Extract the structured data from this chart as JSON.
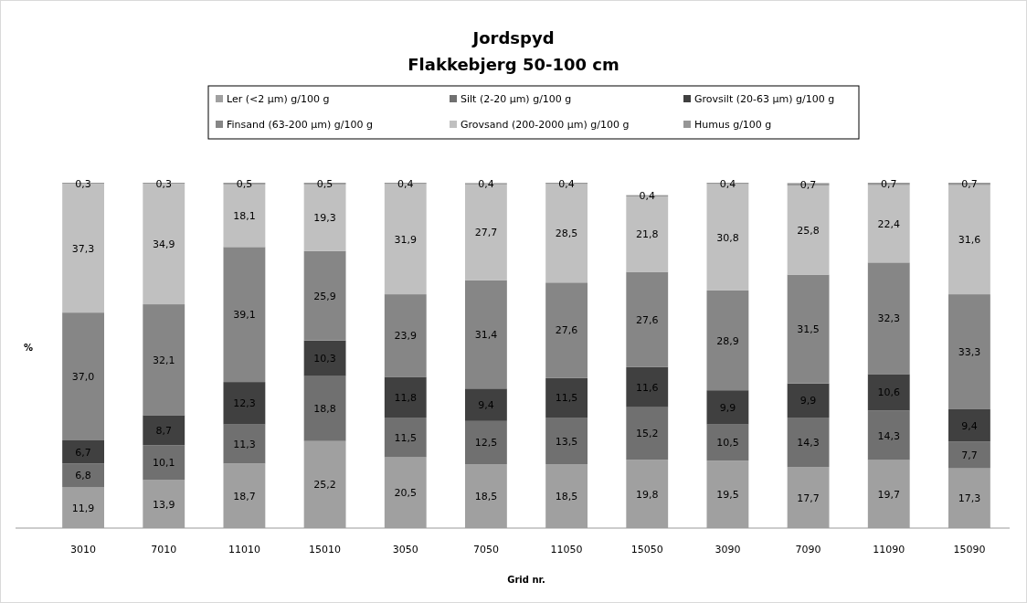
{
  "chart_data": {
    "type": "bar",
    "title": "Jordspyd",
    "subtitle": "Flakkebjerg 50-100 cm",
    "xlabel": "Grid nr.",
    "ylabel": "%",
    "categories": [
      "3010",
      "7010",
      "11010",
      "15010",
      "3050",
      "7050",
      "11050",
      "15050",
      "3090",
      "7090",
      "11090",
      "15090"
    ],
    "stacked": true,
    "legend": "top",
    "tick_labels": "x",
    "series": [
      {
        "name": "Ler (<2 µm) g/100 g",
        "color": "#a0a0a0",
        "values": [
          11.9,
          13.9,
          18.7,
          25.2,
          20.5,
          18.5,
          18.5,
          19.8,
          19.5,
          17.7,
          19.7,
          17.3
        ],
        "value_labels": [
          "11,9",
          "13,9",
          "18,7",
          "25,2",
          "20,5",
          "18,5",
          "18,5",
          "19,8",
          "19,5",
          "17,7",
          "19,7",
          "17,3"
        ]
      },
      {
        "name": "Silt (2-20 µm) g/100 g",
        "color": "#707070",
        "values": [
          6.8,
          10.1,
          11.3,
          18.8,
          11.5,
          12.5,
          13.5,
          15.2,
          10.5,
          14.3,
          14.3,
          7.7
        ],
        "value_labels": [
          "6,8",
          "10,1",
          "11,3",
          "18,8",
          "11,5",
          "12,5",
          "13,5",
          "15,2",
          "10,5",
          "14,3",
          "14,3",
          "7,7"
        ]
      },
      {
        "name": "Grovsilt (20-63 µm) g/100 g",
        "color": "#404040",
        "values": [
          6.7,
          8.7,
          12.3,
          10.3,
          11.8,
          9.4,
          11.5,
          11.6,
          9.9,
          9.9,
          10.6,
          9.4
        ],
        "value_labels": [
          "6,7",
          "8,7",
          "12,3",
          "10,3",
          "11,8",
          "9,4",
          "11,5",
          "11,6",
          "9,9",
          "9,9",
          "10,6",
          "9,4"
        ]
      },
      {
        "name": "Finsand (63-200 µm) g/100 g",
        "color": "#868686",
        "values": [
          37.0,
          32.1,
          39.1,
          25.9,
          23.9,
          31.4,
          27.6,
          27.6,
          28.9,
          31.5,
          32.3,
          33.3
        ],
        "value_labels": [
          "37,0",
          "32,1",
          "39,1",
          "25,9",
          "23,9",
          "31,4",
          "27,6",
          "27,6",
          "28,9",
          "31,5",
          "32,3",
          "33,3"
        ]
      },
      {
        "name": "Grovsand (200-2000 µm) g/100 g",
        "color": "#c0c0c0",
        "values": [
          37.3,
          34.9,
          18.1,
          19.3,
          31.9,
          27.7,
          28.5,
          21.8,
          30.8,
          25.8,
          22.4,
          31.6
        ],
        "value_labels": [
          "37,3",
          "34,9",
          "18,1",
          "19,3",
          "31,9",
          "27,7",
          "28,5",
          "21,8",
          "30,8",
          "25,8",
          "22,4",
          "31,6"
        ]
      },
      {
        "name": "Humus g/100 g",
        "color": "#969696",
        "values": [
          0.3,
          0.3,
          0.5,
          0.5,
          0.4,
          0.4,
          0.4,
          0.4,
          0.4,
          0.7,
          0.7,
          0.7
        ],
        "value_labels": [
          "0,3",
          "0,3",
          "0,5",
          "0,5",
          "0,4",
          "0,4",
          "0,4",
          "0,4",
          "0,4",
          "0,7",
          "0,7",
          "0,7"
        ]
      }
    ]
  }
}
